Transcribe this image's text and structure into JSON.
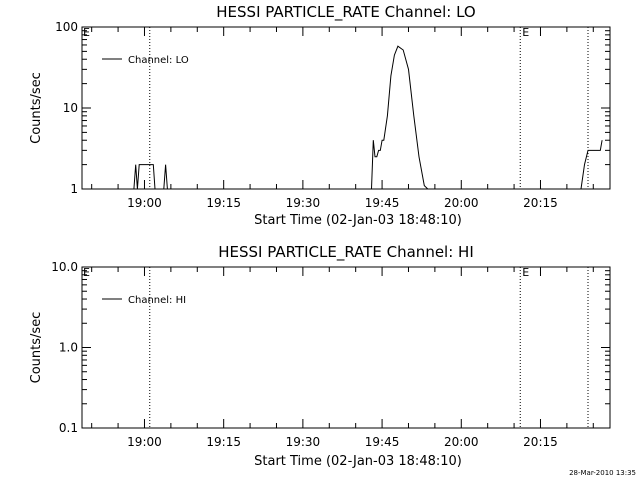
{
  "footer": {
    "timestamp": "28-Mar-2010 13:35"
  },
  "chart_data": [
    {
      "type": "line",
      "title": "HESSI PARTICLE_RATE Channel: LO",
      "xlabel": "Start Time (02-Jan-03 18:48:10)",
      "ylabel": "Counts/sec",
      "y_scale": "log",
      "ylim": [
        1,
        100
      ],
      "xlim": [
        "18:48:10",
        "20:28:10"
      ],
      "x_ticks": [
        "19:00",
        "19:15",
        "19:30",
        "19:45",
        "20:00",
        "20:15"
      ],
      "y_ticks": [
        "1",
        "10",
        "100"
      ],
      "grid": false,
      "legend_position": "top-left",
      "series": [
        {
          "name": "Channel: LO",
          "x": [
            "18:58:00",
            "18:58:20",
            "18:58:40",
            "18:59:00",
            "19:01:40",
            "19:02:00",
            "19:02:20",
            "19:03:00",
            "19:03:40",
            "19:04:00",
            "19:04:20",
            "19:04:40",
            "19:43:00",
            "19:43:20",
            "19:43:40",
            "19:44:00",
            "19:44:20",
            "19:44:40",
            "19:45:00",
            "19:45:20",
            "19:46:00",
            "19:46:40",
            "19:47:20",
            "19:48:00",
            "19:49:00",
            "19:50:00",
            "19:51:00",
            "19:52:00",
            "19:53:00",
            "19:53:40",
            "20:22:40",
            "20:23:20",
            "20:24:00",
            "20:24:40",
            "20:25:20",
            "20:26:00",
            "20:26:20",
            "20:26:40"
          ],
          "values": [
            1.0,
            2.0,
            1.0,
            2.0,
            2.0,
            1.0,
            1.0,
            1.0,
            1.0,
            2.0,
            1.0,
            1.0,
            1.0,
            4.0,
            2.5,
            2.5,
            3.0,
            3.0,
            4.0,
            4.0,
            8.0,
            25.0,
            45.0,
            58.0,
            52.0,
            30.0,
            8.0,
            2.5,
            1.1,
            1.0,
            1.0,
            2.0,
            3.0,
            3.0,
            3.0,
            3.0,
            3.0,
            4.0
          ]
        }
      ],
      "markers": [
        {
          "x": "19:01:00",
          "label": ""
        },
        {
          "x": "20:11:10",
          "label": "E"
        },
        {
          "x": "20:24:00",
          "label": ""
        }
      ],
      "corner_label": "E"
    },
    {
      "type": "line",
      "title": "HESSI PARTICLE_RATE Channel: HI",
      "xlabel": "Start Time (02-Jan-03 18:48:10)",
      "ylabel": "Counts/sec",
      "y_scale": "log",
      "ylim": [
        0.1,
        10.0
      ],
      "xlim": [
        "18:48:10",
        "20:28:10"
      ],
      "x_ticks": [
        "19:00",
        "19:15",
        "19:30",
        "19:45",
        "20:00",
        "20:15"
      ],
      "y_ticks": [
        "0.1",
        "1.0",
        "10.0"
      ],
      "grid": false,
      "legend_position": "top-left",
      "series": [
        {
          "name": "Channel: HI",
          "x": [],
          "values": []
        }
      ],
      "markers": [
        {
          "x": "19:01:00",
          "label": ""
        },
        {
          "x": "20:11:10",
          "label": "E"
        },
        {
          "x": "20:24:00",
          "label": ""
        }
      ],
      "corner_label": "E"
    }
  ]
}
